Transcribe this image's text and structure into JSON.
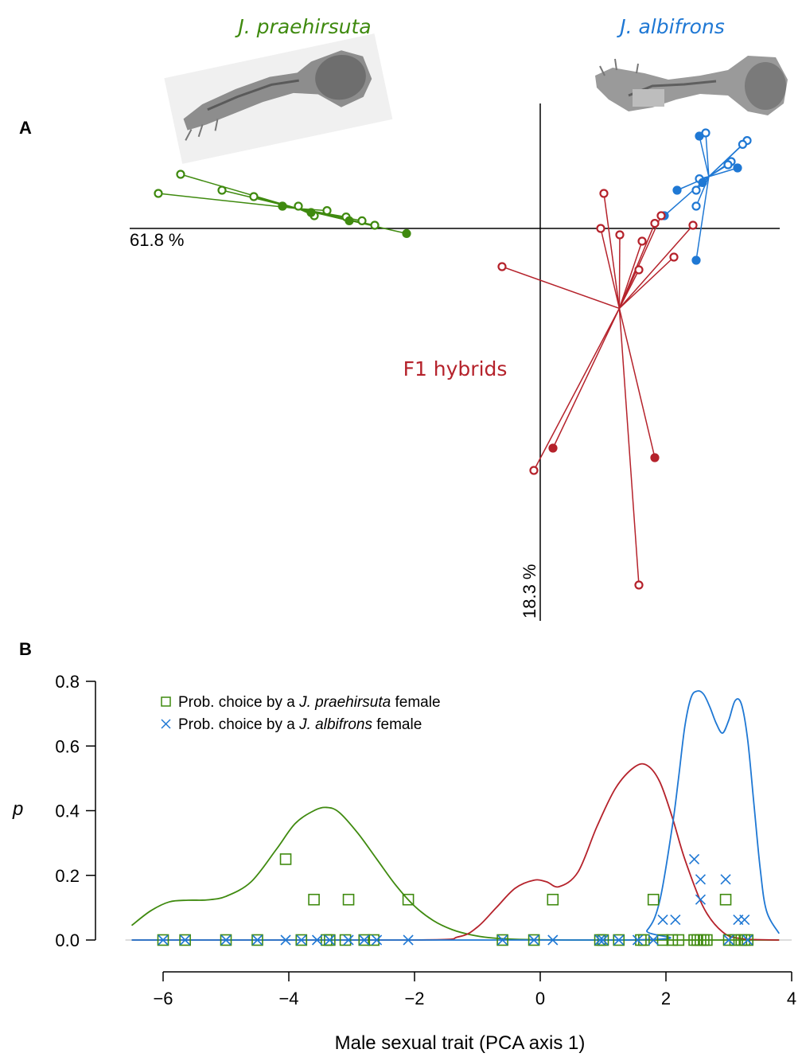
{
  "colors": {
    "praehirsuta": "#3f8a0f",
    "albifrons": "#1f78d4",
    "hybrid": "#b5222b"
  },
  "panel_a": {
    "letter": "A",
    "species_left": "J. praehirsuta",
    "species_right": "J. albifrons",
    "hybrid_label": "F1 hybrids",
    "axis1_pct": "61.8 %",
    "axis2_pct": "18.3 %",
    "images": [
      "praehirsuta-appendage-photo",
      "albifrons-appendage-photo"
    ]
  },
  "chart_data": [
    {
      "type": "scatter",
      "panel": "A",
      "title": "",
      "xlabel": "61.8 %",
      "ylabel": "18.3 %",
      "xlim": [
        -6.5,
        3.8
      ],
      "ylim": [
        -6.2,
        2.0
      ],
      "groups": [
        {
          "group": "J. praehirsuta",
          "color": "#3f8a0f",
          "points": [
            {
              "x": -6.0,
              "y": 0.55,
              "parent": false
            },
            {
              "x": -5.65,
              "y": 0.85,
              "parent": false
            },
            {
              "x": -5.0,
              "y": 0.6,
              "parent": false
            },
            {
              "x": -4.5,
              "y": 0.5,
              "parent": false
            },
            {
              "x": -4.05,
              "y": 0.35,
              "parent": false
            },
            {
              "x": -3.8,
              "y": 0.35,
              "parent": false
            },
            {
              "x": -3.55,
              "y": 0.2,
              "parent": false
            },
            {
              "x": -3.35,
              "y": 0.28,
              "parent": false
            },
            {
              "x": -3.05,
              "y": 0.18,
              "parent": false
            },
            {
              "x": -2.8,
              "y": 0.12,
              "parent": false
            },
            {
              "x": -2.6,
              "y": 0.05,
              "parent": false
            },
            {
              "x": -4.05,
              "y": 0.35,
              "parent": true
            },
            {
              "x": -3.6,
              "y": 0.25,
              "parent": true
            },
            {
              "x": -3.0,
              "y": 0.12,
              "parent": true
            },
            {
              "x": -2.1,
              "y": -0.08,
              "parent": true
            }
          ]
        },
        {
          "group": "J. albifrons",
          "color": "#1f78d4",
          "points": [
            {
              "x": 2.6,
              "y": 1.5,
              "parent": false
            },
            {
              "x": 3.25,
              "y": 1.38,
              "parent": false
            },
            {
              "x": 3.18,
              "y": 1.32,
              "parent": false
            },
            {
              "x": 3.0,
              "y": 1.05,
              "parent": false
            },
            {
              "x": 2.95,
              "y": 1.0,
              "parent": false
            },
            {
              "x": 2.5,
              "y": 0.78,
              "parent": false
            },
            {
              "x": 2.45,
              "y": 0.6,
              "parent": false
            },
            {
              "x": 2.45,
              "y": 0.35,
              "parent": false
            },
            {
              "x": 2.5,
              "y": 1.45,
              "parent": true
            },
            {
              "x": 3.1,
              "y": 0.95,
              "parent": true
            },
            {
              "x": 2.55,
              "y": 0.72,
              "parent": true
            },
            {
              "x": 2.15,
              "y": 0.6,
              "parent": true
            },
            {
              "x": 1.95,
              "y": 0.2,
              "parent": true
            },
            {
              "x": 2.45,
              "y": -0.5,
              "parent": true
            }
          ]
        },
        {
          "group": "F1 hybrids",
          "color": "#b5222b",
          "points": [
            {
              "x": -0.6,
              "y": -0.6,
              "parent": false
            },
            {
              "x": 1.0,
              "y": 0.55,
              "parent": false
            },
            {
              "x": 0.95,
              "y": 0.0,
              "parent": false
            },
            {
              "x": 1.25,
              "y": -0.1,
              "parent": false
            },
            {
              "x": 1.6,
              "y": -0.2,
              "parent": false
            },
            {
              "x": 1.55,
              "y": -0.65,
              "parent": false
            },
            {
              "x": 2.1,
              "y": -0.45,
              "parent": false
            },
            {
              "x": 1.8,
              "y": 0.08,
              "parent": false
            },
            {
              "x": 2.4,
              "y": 0.05,
              "parent": false
            },
            {
              "x": 1.9,
              "y": 0.2,
              "parent": false
            },
            {
              "x": -0.1,
              "y": -3.8,
              "parent": false
            },
            {
              "x": 1.55,
              "y": -5.6,
              "parent": false
            },
            {
              "x": 0.2,
              "y": -3.45,
              "parent": true
            },
            {
              "x": 1.8,
              "y": -3.6,
              "parent": true
            }
          ]
        }
      ]
    },
    {
      "type": "line",
      "panel": "B",
      "title": "",
      "xlabel": "Male sexual trait (PCA axis 1)",
      "ylabel": "p",
      "xlim": [
        -6.6,
        4.0
      ],
      "ylim": [
        0.0,
        0.8
      ],
      "xticks": [
        -6,
        -4,
        -2,
        0,
        2,
        4
      ],
      "yticks": [
        0.0,
        0.2,
        0.4,
        0.6,
        0.8
      ],
      "series": [
        {
          "color": "#3f8a0f",
          "x": [
            -6.5,
            -6.2,
            -5.9,
            -5.6,
            -5.3,
            -5.0,
            -4.6,
            -4.2,
            -3.9,
            -3.6,
            -3.4,
            -3.2,
            -2.9,
            -2.6,
            -2.3,
            -2.0,
            -1.7,
            -1.4,
            -1.1,
            -0.8,
            -0.5,
            -0.1,
            0.5,
            1.5,
            3.8
          ],
          "values": [
            0.045,
            0.09,
            0.118,
            0.123,
            0.124,
            0.135,
            0.18,
            0.28,
            0.36,
            0.4,
            0.41,
            0.395,
            0.33,
            0.25,
            0.17,
            0.105,
            0.06,
            0.032,
            0.016,
            0.007,
            0.003,
            0.001,
            0.0,
            0.0,
            0.0
          ]
        },
        {
          "color": "#b5222b",
          "x": [
            -6.5,
            -2.0,
            -1.3,
            -1.0,
            -0.7,
            -0.4,
            -0.1,
            0.1,
            0.3,
            0.6,
            0.9,
            1.2,
            1.5,
            1.7,
            1.9,
            2.1,
            2.3,
            2.6,
            2.9,
            3.2,
            3.8
          ],
          "values": [
            0.0,
            0.0,
            0.01,
            0.04,
            0.1,
            0.16,
            0.185,
            0.18,
            0.165,
            0.21,
            0.35,
            0.47,
            0.535,
            0.54,
            0.49,
            0.38,
            0.25,
            0.1,
            0.025,
            0.004,
            0.0
          ]
        },
        {
          "color": "#1f78d4",
          "x": [
            -6.5,
            1.4,
            1.7,
            1.9,
            2.1,
            2.2,
            2.3,
            2.4,
            2.5,
            2.6,
            2.7,
            2.8,
            2.9,
            3.0,
            3.1,
            3.2,
            3.3,
            3.4,
            3.5,
            3.6,
            3.8
          ],
          "values": [
            0.0,
            0.0,
            0.03,
            0.12,
            0.35,
            0.5,
            0.66,
            0.75,
            0.77,
            0.76,
            0.72,
            0.67,
            0.64,
            0.68,
            0.74,
            0.73,
            0.62,
            0.42,
            0.22,
            0.09,
            0.02
          ]
        }
      ],
      "legend": [
        {
          "marker": "square",
          "color": "#3f8a0f",
          "prefix": "Prob. choice by a ",
          "species": "J. praehirsuta",
          "suffix": " female"
        },
        {
          "marker": "cross",
          "color": "#1f78d4",
          "prefix": "Prob. choice by a ",
          "species": "J. albifrons",
          "suffix": " female"
        }
      ],
      "points_praehirsuta_female": [
        {
          "x": -6.0,
          "y": 0.0
        },
        {
          "x": -5.65,
          "y": 0.0
        },
        {
          "x": -5.0,
          "y": 0.0
        },
        {
          "x": -4.5,
          "y": 0.0
        },
        {
          "x": -4.05,
          "y": 0.25
        },
        {
          "x": -3.8,
          "y": 0.0
        },
        {
          "x": -3.6,
          "y": 0.125
        },
        {
          "x": -3.4,
          "y": 0.0
        },
        {
          "x": -3.35,
          "y": 0.0
        },
        {
          "x": -3.1,
          "y": 0.0
        },
        {
          "x": -3.05,
          "y": 0.125
        },
        {
          "x": -2.8,
          "y": 0.0
        },
        {
          "x": -2.65,
          "y": 0.0
        },
        {
          "x": -2.1,
          "y": 0.125
        },
        {
          "x": -0.6,
          "y": 0.0
        },
        {
          "x": -0.1,
          "y": 0.0
        },
        {
          "x": 0.2,
          "y": 0.125
        },
        {
          "x": 0.95,
          "y": 0.0
        },
        {
          "x": 1.0,
          "y": 0.0
        },
        {
          "x": 1.25,
          "y": 0.0
        },
        {
          "x": 1.6,
          "y": 0.0
        },
        {
          "x": 1.65,
          "y": 0.0
        },
        {
          "x": 1.8,
          "y": 0.125
        },
        {
          "x": 1.95,
          "y": 0.0
        },
        {
          "x": 2.1,
          "y": 0.0
        },
        {
          "x": 2.2,
          "y": 0.0
        },
        {
          "x": 2.45,
          "y": 0.0
        },
        {
          "x": 2.5,
          "y": 0.0
        },
        {
          "x": 2.55,
          "y": 0.0
        },
        {
          "x": 2.6,
          "y": 0.0
        },
        {
          "x": 2.65,
          "y": 0.0
        },
        {
          "x": 2.95,
          "y": 0.125
        },
        {
          "x": 3.0,
          "y": 0.0
        },
        {
          "x": 3.1,
          "y": 0.0
        },
        {
          "x": 3.2,
          "y": 0.0
        },
        {
          "x": 3.25,
          "y": 0.0
        },
        {
          "x": 3.3,
          "y": 0.0
        }
      ],
      "points_albifrons_female": [
        {
          "x": -6.0,
          "y": 0.0
        },
        {
          "x": -5.65,
          "y": 0.0
        },
        {
          "x": -5.0,
          "y": 0.0
        },
        {
          "x": -4.5,
          "y": 0.0
        },
        {
          "x": -4.05,
          "y": 0.0
        },
        {
          "x": -3.8,
          "y": 0.0
        },
        {
          "x": -3.55,
          "y": 0.0
        },
        {
          "x": -3.35,
          "y": 0.0
        },
        {
          "x": -3.05,
          "y": 0.0
        },
        {
          "x": -2.8,
          "y": 0.0
        },
        {
          "x": -2.6,
          "y": 0.0
        },
        {
          "x": -2.1,
          "y": 0.0
        },
        {
          "x": -0.6,
          "y": 0.0
        },
        {
          "x": -0.1,
          "y": 0.0
        },
        {
          "x": 0.2,
          "y": 0.0
        },
        {
          "x": 0.95,
          "y": 0.0
        },
        {
          "x": 1.0,
          "y": 0.0
        },
        {
          "x": 1.25,
          "y": 0.0
        },
        {
          "x": 1.55,
          "y": 0.0
        },
        {
          "x": 1.8,
          "y": 0.0
        },
        {
          "x": 1.95,
          "y": 0.0625
        },
        {
          "x": 2.15,
          "y": 0.0625
        },
        {
          "x": 2.45,
          "y": 0.25
        },
        {
          "x": 2.55,
          "y": 0.1875
        },
        {
          "x": 2.55,
          "y": 0.125
        },
        {
          "x": 2.95,
          "y": 0.1875
        },
        {
          "x": 3.15,
          "y": 0.0625
        },
        {
          "x": 3.25,
          "y": 0.0625
        },
        {
          "x": 3.0,
          "y": 0.0
        },
        {
          "x": 3.3,
          "y": 0.0
        }
      ]
    }
  ]
}
